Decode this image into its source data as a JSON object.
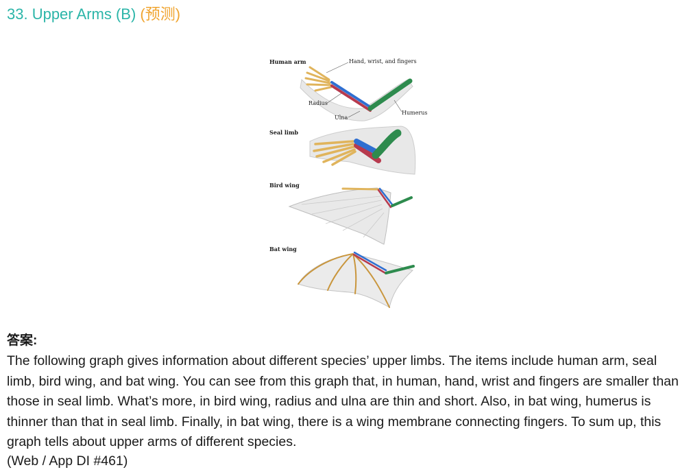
{
  "title": {
    "main": "33. Upper Arms (B)",
    "tag": "(预测)"
  },
  "figure": {
    "labels": {
      "human_arm": "Human arm",
      "hand_wrist_fingers": "Hand, wrist, and fingers",
      "radius": "Radius",
      "ulna": "Ulna",
      "humerus": "Humerus",
      "seal_limb": "Seal limb",
      "bird_wing": "Bird wing",
      "bat_wing": "Bat wing"
    },
    "colors": {
      "humerus": "#2e8b4e",
      "radius": "#2f6fd1",
      "ulna": "#b73a4e",
      "hand": "#e0b45c",
      "skin": "#e6e6e6"
    }
  },
  "answer": {
    "heading": "答案:",
    "text": "The following graph gives information about different species’ upper limbs. The items include human arm, seal limb, bird wing, and bat wing. You can see from this graph that, in human, hand, wrist and fingers are smaller than those in seal limb. What’s more, in bird wing, radius and ulna are thin and short. Also, in bat wing, humerus is thinner than that in seal limb. Finally, in bat wing, there is a wing membrane connecting fingers. To sum up, this graph tells about upper arms of different species.",
    "source": "(Web / App DI #461)"
  }
}
